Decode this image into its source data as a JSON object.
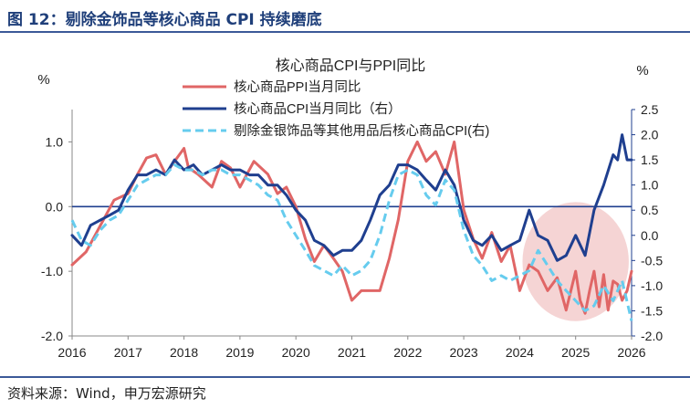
{
  "header": {
    "title": "图 12：剔除金饰品等核心商品 CPI 持续磨底"
  },
  "footer": {
    "source": "资料来源：Wind，申万宏源研究"
  },
  "colors": {
    "ppi": "#e06666",
    "cpi": "#1f3f8f",
    "cpi_ex": "#66ccee",
    "highlight": "#f2c6c6",
    "title_text": "#1f3f7a",
    "zero_line": "#1f3f8f"
  },
  "chart_data": {
    "type": "line",
    "title": "核心商品CPI与PPI同比",
    "left_axis": {
      "unit_label": "%",
      "ylim": [
        -2.0,
        1.5
      ],
      "ticks": [
        1.0,
        0.0,
        -1.0,
        -2.0
      ],
      "tick_labels": [
        "1.0",
        "0.0",
        "-1.0",
        "-2.0"
      ]
    },
    "right_axis": {
      "unit_label": "%",
      "ylim": [
        -2.0,
        2.5
      ],
      "ticks": [
        2.5,
        2.0,
        1.5,
        1.0,
        0.5,
        0.0,
        -0.5,
        -1.0,
        -1.5,
        -2.0
      ],
      "tick_labels": [
        "2.5",
        "2.0",
        "1.5",
        "1.0",
        "0.5",
        "0.0",
        "-0.5",
        "-1.0",
        "-1.5",
        "-2.0"
      ]
    },
    "x_ticks": [
      "2016",
      "2017",
      "2018",
      "2019",
      "2020",
      "2021",
      "2022",
      "2023",
      "2024",
      "2025",
      "2026"
    ],
    "legend": {
      "placement": "top-center",
      "entries": [
        "核心商品PPI当月同比",
        "核心商品CPI当月同比（右）",
        "剔除金银饰品等其他用品后核心商品CPI(右)"
      ]
    },
    "highlight": {
      "x_center": 2025.0,
      "y_center_left": -0.85,
      "x_radius": 0.95,
      "y_radius_left": 0.92
    },
    "series": [
      {
        "name": "核心商品PPI当月同比",
        "axis": "left",
        "style": "solid",
        "x": [
          2016.0,
          2016.25,
          2016.5,
          2016.75,
          2017.0,
          2017.17,
          2017.33,
          2017.5,
          2017.67,
          2017.83,
          2018.0,
          2018.08,
          2018.25,
          2018.5,
          2018.67,
          2018.83,
          2019.0,
          2019.25,
          2019.5,
          2019.67,
          2019.83,
          2020.0,
          2020.17,
          2020.33,
          2020.5,
          2020.67,
          2020.83,
          2021.0,
          2021.17,
          2021.33,
          2021.5,
          2021.67,
          2021.83,
          2022.0,
          2022.17,
          2022.33,
          2022.5,
          2022.67,
          2022.83,
          2023.0,
          2023.17,
          2023.33,
          2023.5,
          2023.67,
          2023.83,
          2024.0,
          2024.17,
          2024.33,
          2024.5,
          2024.67,
          2024.83,
          2025.0,
          2025.08,
          2025.17,
          2025.25,
          2025.33,
          2025.42,
          2025.5,
          2025.58,
          2025.67,
          2025.75,
          2025.83,
          2025.92,
          2026.0
        ],
        "y": [
          -0.9,
          -0.7,
          -0.3,
          0.1,
          0.2,
          0.5,
          0.75,
          0.8,
          0.5,
          0.7,
          0.9,
          0.6,
          0.5,
          0.3,
          0.7,
          0.6,
          0.3,
          0.7,
          0.5,
          0.2,
          0.3,
          0.0,
          -0.5,
          -0.85,
          -0.6,
          -0.8,
          -1.0,
          -1.45,
          -1.3,
          -1.3,
          -1.3,
          -0.8,
          -0.2,
          0.7,
          1.0,
          0.7,
          0.85,
          0.5,
          1.0,
          -0.05,
          -0.5,
          -0.8,
          -0.4,
          -0.85,
          -0.6,
          -1.3,
          -0.9,
          -1.0,
          -1.3,
          -1.1,
          -1.6,
          -1.0,
          -1.45,
          -1.65,
          -1.3,
          -1.0,
          -1.55,
          -1.05,
          -1.6,
          -1.15,
          -1.2,
          -1.45,
          -1.3,
          -1.0
        ]
      },
      {
        "name": "核心商品CPI当月同比（右）",
        "axis": "right",
        "style": "solid",
        "x": [
          2016.0,
          2016.17,
          2016.33,
          2016.5,
          2016.67,
          2016.83,
          2017.0,
          2017.17,
          2017.33,
          2017.5,
          2017.67,
          2017.83,
          2018.0,
          2018.17,
          2018.33,
          2018.5,
          2018.67,
          2018.83,
          2019.0,
          2019.17,
          2019.33,
          2019.5,
          2019.67,
          2019.83,
          2020.0,
          2020.17,
          2020.33,
          2020.5,
          2020.67,
          2020.83,
          2021.0,
          2021.17,
          2021.33,
          2021.5,
          2021.67,
          2021.83,
          2022.0,
          2022.17,
          2022.33,
          2022.5,
          2022.67,
          2022.83,
          2023.0,
          2023.17,
          2023.33,
          2023.5,
          2023.67,
          2023.83,
          2024.0,
          2024.17,
          2024.33,
          2024.5,
          2024.67,
          2024.83,
          2025.0,
          2025.17,
          2025.33,
          2025.5,
          2025.67,
          2025.75,
          2025.83,
          2025.92,
          2026.0
        ],
        "y": [
          0.0,
          -0.2,
          0.2,
          0.3,
          0.4,
          0.5,
          0.9,
          1.2,
          1.2,
          1.3,
          1.2,
          1.5,
          1.3,
          1.4,
          1.2,
          1.3,
          1.4,
          1.3,
          1.3,
          1.2,
          1.2,
          1.0,
          1.0,
          0.8,
          0.5,
          0.3,
          -0.1,
          -0.2,
          -0.4,
          -0.3,
          -0.3,
          -0.1,
          0.3,
          0.8,
          1.0,
          1.4,
          1.4,
          1.3,
          1.1,
          0.9,
          1.3,
          1.0,
          0.3,
          -0.1,
          -0.2,
          0.0,
          -0.3,
          -0.2,
          -0.1,
          0.5,
          0.0,
          -0.1,
          -0.5,
          -0.4,
          0.0,
          -0.4,
          0.5,
          1.0,
          1.6,
          1.5,
          2.0,
          1.5,
          1.5
        ]
      },
      {
        "name": "剔除金银饰品等其他用品后核心商品CPI(右)",
        "axis": "right",
        "style": "dashed",
        "x": [
          2016.0,
          2016.17,
          2016.33,
          2016.5,
          2016.67,
          2016.83,
          2017.0,
          2017.17,
          2017.33,
          2017.5,
          2017.67,
          2017.83,
          2018.0,
          2018.17,
          2018.33,
          2018.5,
          2018.67,
          2018.83,
          2019.0,
          2019.17,
          2019.33,
          2019.5,
          2019.67,
          2019.83,
          2020.0,
          2020.17,
          2020.33,
          2020.5,
          2020.67,
          2020.83,
          2021.0,
          2021.17,
          2021.33,
          2021.5,
          2021.67,
          2021.83,
          2022.0,
          2022.17,
          2022.33,
          2022.5,
          2022.67,
          2022.83,
          2023.0,
          2023.17,
          2023.33,
          2023.5,
          2023.67,
          2023.83,
          2024.0,
          2024.17,
          2024.33,
          2024.5,
          2024.67,
          2024.83,
          2025.0,
          2025.17,
          2025.33,
          2025.5,
          2025.67,
          2025.83,
          2026.0
        ],
        "y": [
          0.3,
          -0.1,
          -0.2,
          0.1,
          0.3,
          0.4,
          0.7,
          1.0,
          1.1,
          1.2,
          1.2,
          1.4,
          1.3,
          1.3,
          1.2,
          1.3,
          1.3,
          1.2,
          1.2,
          1.1,
          1.0,
          0.8,
          0.7,
          0.3,
          0.0,
          -0.3,
          -0.6,
          -0.7,
          -0.8,
          -0.6,
          -0.8,
          -0.7,
          -0.5,
          0.0,
          0.7,
          1.2,
          1.3,
          1.2,
          0.8,
          0.6,
          1.1,
          0.9,
          0.1,
          -0.4,
          -0.6,
          -0.9,
          -0.8,
          -0.9,
          -0.8,
          -0.7,
          -0.3,
          -0.6,
          -0.9,
          -1.1,
          -1.3,
          -1.5,
          -1.4,
          -1.0,
          -1.3,
          -0.9,
          -1.7
        ]
      }
    ]
  }
}
